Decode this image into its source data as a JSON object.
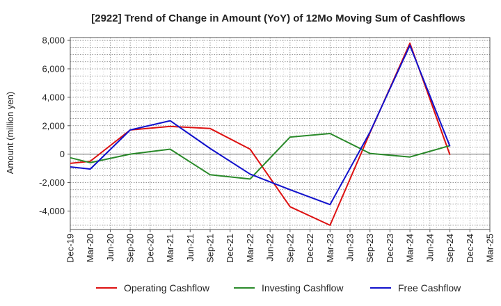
{
  "chart_data": {
    "type": "line",
    "title": "[2922]  Trend of Change in Amount (YoY) of 12Mo Moving Sum of Cashflows",
    "xlabel": "",
    "ylabel": "Amount (million yen)",
    "categories": [
      "Dec-19",
      "Mar-20",
      "Jun-20",
      "Sep-20",
      "Dec-20",
      "Mar-21",
      "Jun-21",
      "Sep-21",
      "Dec-21",
      "Mar-22",
      "Jun-22",
      "Sep-22",
      "Dec-22",
      "Mar-23",
      "Jun-23",
      "Sep-23",
      "Dec-23",
      "Mar-24",
      "Jun-24",
      "Sep-24",
      "Dec-24",
      "Mar-25"
    ],
    "ylim": [
      -5300,
      8200
    ],
    "yticks": [
      -4000,
      -2000,
      0,
      2000,
      4000,
      6000,
      8000
    ],
    "ytick_labels": [
      "-4,000",
      "-2,000",
      "0",
      "2,000",
      "4,000",
      "6,000",
      "8,000"
    ],
    "grid": true,
    "legend_position": "bottom",
    "series": [
      {
        "name": "Operating Cashflow",
        "color": "#dd1111",
        "values": [
          -650,
          -500,
          null,
          1700,
          null,
          1950,
          null,
          1800,
          null,
          350,
          null,
          -3700,
          null,
          -5000,
          null,
          1500,
          null,
          7800,
          null,
          -50,
          null,
          null
        ]
      },
      {
        "name": "Investing Cashflow",
        "color": "#2a8a2a",
        "values": [
          -250,
          -600,
          null,
          0,
          null,
          350,
          null,
          -1450,
          null,
          -1750,
          null,
          1200,
          null,
          1450,
          null,
          50,
          null,
          -200,
          null,
          600,
          null,
          null
        ]
      },
      {
        "name": "Free Cashflow",
        "color": "#1111cc",
        "values": [
          -900,
          -1050,
          null,
          1700,
          null,
          2350,
          null,
          400,
          null,
          -1400,
          null,
          -2500,
          null,
          -3550,
          null,
          1550,
          null,
          7650,
          null,
          550,
          null,
          null
        ]
      }
    ]
  }
}
